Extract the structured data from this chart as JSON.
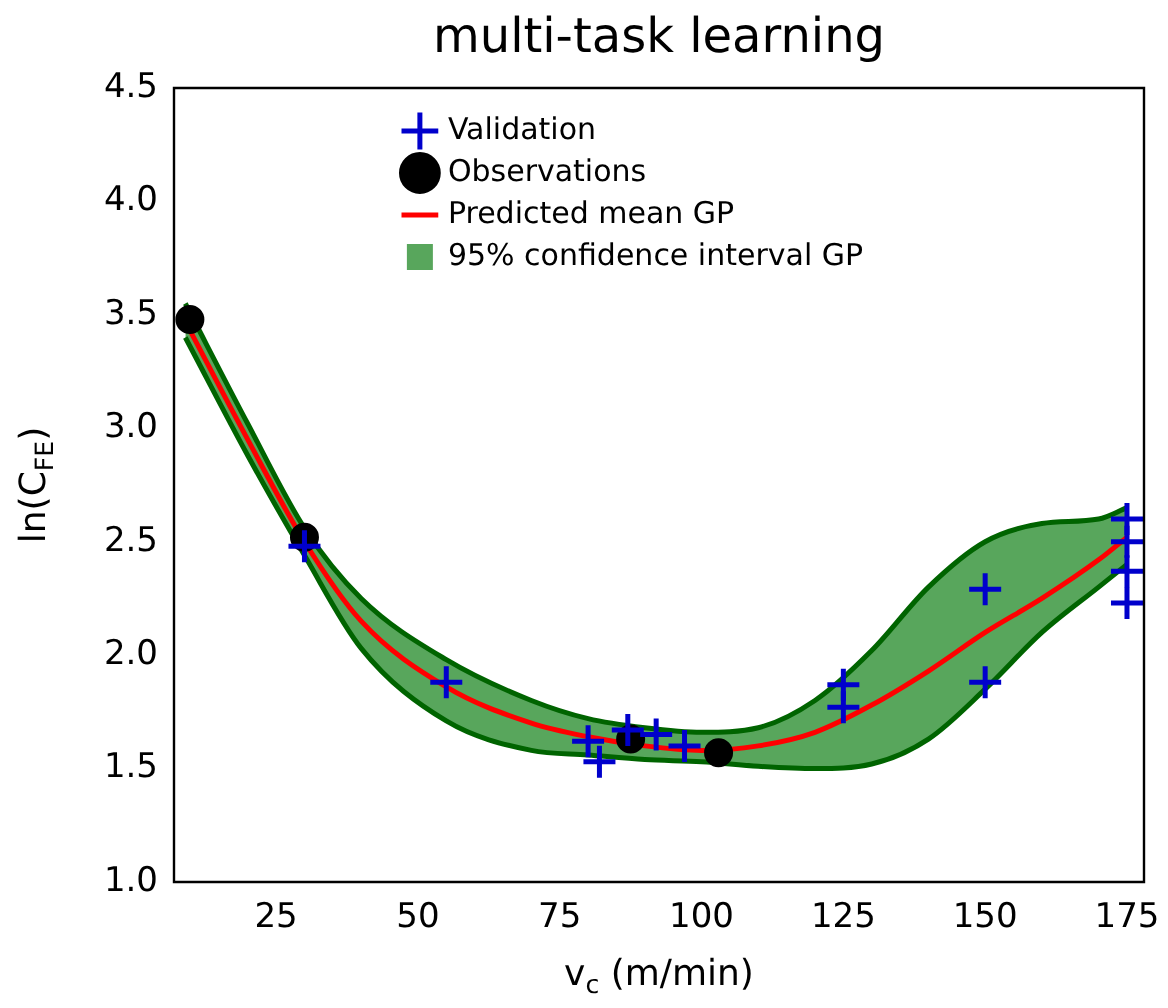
{
  "chart_data": {
    "type": "scatter",
    "title": "multi-task learning",
    "xlabel": "v$_{c}$ (m/min)",
    "ylabel": "ln(C$_{FE}$)",
    "xlim": [
      7,
      178
    ],
    "xticks": [
      25,
      50,
      75,
      100,
      125,
      150,
      175
    ],
    "ylim": [
      1,
      4.5
    ],
    "yticks": [
      {
        "value": 1,
        "label": "1.0"
      },
      {
        "value": 1.5,
        "label": "1.5"
      },
      {
        "value": 2,
        "label": "2.0"
      },
      {
        "value": 2.5,
        "label": "2.5"
      },
      {
        "value": 3,
        "label": "3.0"
      },
      {
        "value": 3.5,
        "label": "3.5"
      },
      {
        "value": 4,
        "label": "4.0"
      },
      {
        "value": 4.5,
        "label": "4.5"
      }
    ],
    "grid": false,
    "legend": "top",
    "series": [
      {
        "name": "Validation",
        "type": "scatter",
        "marker": "cross",
        "color": "#0000cc",
        "x": [
          30,
          55,
          80,
          82,
          87,
          92,
          97,
          125,
          125,
          150,
          150,
          175,
          175,
          175,
          175
        ],
        "values": [
          2.48,
          1.88,
          1.62,
          1.53,
          1.67,
          1.65,
          1.6,
          1.87,
          1.77,
          2.29,
          1.88,
          2.6,
          2.5,
          2.37,
          2.23
        ]
      },
      {
        "name": "Observations",
        "type": "scatter",
        "marker": "circle",
        "color": "#000000",
        "x": [
          9.8,
          30,
          87.5,
          103
        ],
        "values": [
          3.48,
          2.52,
          1.63,
          1.57
        ]
      },
      {
        "name": "Predicted mean GP",
        "type": "line",
        "marker": "none",
        "color": "#ff0000",
        "x": [
          9,
          20,
          30,
          40,
          55,
          70,
          80,
          90,
          100,
          110,
          120,
          130,
          140,
          150,
          160,
          170,
          175
        ],
        "values": [
          3.47,
          2.95,
          2.5,
          2.15,
          1.86,
          1.7,
          1.64,
          1.6,
          1.58,
          1.6,
          1.66,
          1.78,
          1.93,
          2.1,
          2.25,
          2.42,
          2.52
        ],
        "upper": [
          3.55,
          3.02,
          2.56,
          2.25,
          1.98,
          1.8,
          1.72,
          1.68,
          1.66,
          1.68,
          1.8,
          2.02,
          2.3,
          2.5,
          2.58,
          2.6,
          2.65
        ],
        "lower": [
          3.4,
          2.88,
          2.44,
          2.03,
          1.71,
          1.58,
          1.56,
          1.54,
          1.53,
          1.51,
          1.5,
          1.52,
          1.63,
          1.85,
          2.1,
          2.3,
          2.4
        ]
      },
      {
        "name": "95% confidence interval GP",
        "type": "area",
        "color": "#58a65c"
      },
      {
        "type": "line",
        "marker": "none",
        "color": "#006400",
        "x": [
          9,
          20,
          30,
          40,
          55,
          70,
          80,
          90,
          100,
          110,
          120,
          130,
          140,
          150,
          160,
          170,
          175
        ],
        "values": [
          3.55,
          3.02,
          2.56,
          2.25,
          1.98,
          1.8,
          1.72,
          1.68,
          1.66,
          1.68,
          1.8,
          2.02,
          2.3,
          2.5,
          2.58,
          2.6,
          2.65
        ]
      },
      {
        "type": "line",
        "marker": "none",
        "color": "#006400",
        "x": [
          9,
          20,
          30,
          40,
          55,
          70,
          80,
          90,
          100,
          110,
          120,
          130,
          140,
          150,
          160,
          170,
          175
        ],
        "values": [
          3.4,
          2.88,
          2.44,
          2.03,
          1.71,
          1.58,
          1.56,
          1.54,
          1.53,
          1.51,
          1.5,
          1.52,
          1.63,
          1.85,
          2.1,
          2.3,
          2.4
        ]
      }
    ]
  }
}
